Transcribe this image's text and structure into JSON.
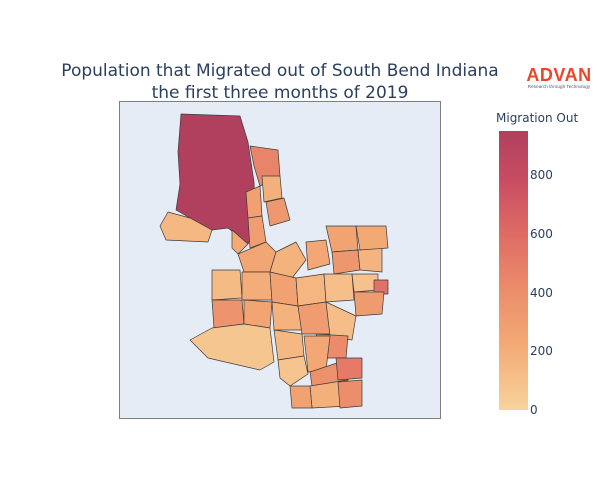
{
  "title": {
    "line1": "Population that Migrated out of South Bend Indiana",
    "line2": "the first three months of 2019"
  },
  "logo": {
    "name": "ADVAN",
    "tagline": "Research through Technology"
  },
  "colorbar": {
    "title": "Migration Out",
    "min": 0,
    "max": 950,
    "ticks": [
      "0",
      "200",
      "400",
      "600",
      "800"
    ],
    "colorscale": [
      "#f8d39d",
      "#f3a974",
      "#eb8b6b",
      "#de6a64",
      "#c94d63",
      "#b0405e"
    ]
  },
  "chart_data": {
    "type": "choropleth",
    "title": "Population that Migrated out of South Bend Indiana the first three months of 2019",
    "value_label": "Migration Out",
    "range": [
      0,
      950
    ],
    "regions": [
      {
        "value": 950
      },
      {
        "value": 420
      },
      {
        "value": 250
      },
      {
        "value": 160
      },
      {
        "value": 120
      },
      {
        "value": 180
      },
      {
        "value": 260
      },
      {
        "value": 300
      },
      {
        "value": 210
      },
      {
        "value": 150
      },
      {
        "value": 200
      },
      {
        "value": 230
      },
      {
        "value": 310
      },
      {
        "value": 140
      },
      {
        "value": 190
      },
      {
        "value": 110
      },
      {
        "value": 170
      },
      {
        "value": 240
      },
      {
        "value": 130
      },
      {
        "value": 90
      },
      {
        "value": 80
      },
      {
        "value": 520
      },
      {
        "value": 280
      },
      {
        "value": 330
      },
      {
        "value": 220
      },
      {
        "value": 60
      },
      {
        "value": 150
      },
      {
        "value": 270
      },
      {
        "value": 100
      },
      {
        "value": 380
      },
      {
        "value": 120
      },
      {
        "value": 200
      },
      {
        "value": 340
      },
      {
        "value": 160
      },
      {
        "value": 70
      },
      {
        "value": 240
      },
      {
        "value": 480
      },
      {
        "value": 360
      }
    ]
  }
}
